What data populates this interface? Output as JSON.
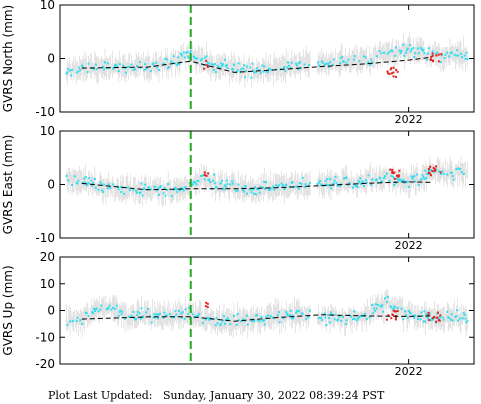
{
  "colors": {
    "errorbar": "#d4d4d4",
    "point": "#33ddf0",
    "point_recent": "#e0201c",
    "trend": "#000000",
    "marker": "#22aa22"
  },
  "chart_data": [
    {
      "type": "scatter",
      "title": "",
      "xlabel": "",
      "ylabel": "GVRS North (mm)",
      "ylim": [
        -10,
        10
      ],
      "yticks": [
        -10,
        0,
        10
      ],
      "xtick_labels": [
        "2022"
      ],
      "grid": false,
      "series": [
        {
          "x": [
            2020.5,
            2020.6,
            2020.7,
            2020.8,
            2020.9,
            2021.0,
            2021.05,
            2021.1,
            2021.2,
            2021.3,
            2021.4,
            2021.5,
            2021.6,
            2021.7,
            2021.8,
            2021.9,
            2022.0,
            2022.1
          ],
          "y": [
            -1.8,
            -1.6,
            -1.9,
            -1.4,
            -1.0,
            0.8,
            -0.6,
            -1.2,
            -2.0,
            -2.4,
            -1.6,
            -1.3,
            -0.9,
            -0.5,
            -0.4,
            1.0,
            1.8,
            0.6
          ]
        },
        {
          "x": [
            2021.07,
            2021.93,
            2022.12
          ],
          "y": [
            -1.3,
            -2.6,
            0.3
          ]
        }
      ],
      "trend": {
        "x": [
          2020.5,
          2020.8,
          2021.0,
          2021.2,
          2021.4,
          2021.6,
          2021.8,
          2022.0,
          2022.1
        ],
        "y": [
          -1.8,
          -1.6,
          -0.5,
          -2.6,
          -2.1,
          -1.5,
          -1.0,
          -0.3,
          0.2
        ]
      },
      "offset_marker_x": 2021.0
    },
    {
      "type": "scatter",
      "title": "",
      "xlabel": "",
      "ylabel": "GVRS East (mm)",
      "ylim": [
        -10,
        10
      ],
      "yticks": [
        -10,
        0,
        10
      ],
      "xtick_labels": [
        "2022"
      ],
      "grid": false,
      "series": [
        {
          "x": [
            2020.5,
            2020.6,
            2020.7,
            2020.8,
            2020.9,
            2021.0,
            2021.05,
            2021.1,
            2021.2,
            2021.3,
            2021.4,
            2021.5,
            2021.6,
            2021.7,
            2021.8,
            2021.9,
            2022.0,
            2022.1
          ],
          "y": [
            0.8,
            -0.4,
            -1.2,
            -1.0,
            -1.1,
            -0.6,
            1.4,
            0.6,
            -0.6,
            -0.9,
            -0.3,
            -0.2,
            0.2,
            0.5,
            0.4,
            1.3,
            0.2,
            2.2
          ]
        },
        {
          "x": [
            2021.07,
            2021.93,
            2022.12
          ],
          "y": [
            1.5,
            1.9,
            2.6
          ]
        }
      ],
      "trend": {
        "x": [
          2020.5,
          2020.8,
          2021.0,
          2021.2,
          2021.4,
          2021.6,
          2021.8,
          2022.0,
          2022.1
        ],
        "y": [
          0.2,
          -1.0,
          -0.8,
          -0.8,
          -0.6,
          -0.2,
          0.2,
          0.5,
          0.4
        ]
      },
      "offset_marker_x": 2021.0
    },
    {
      "type": "scatter",
      "title": "",
      "xlabel": "",
      "ylabel": "GVRS Up (mm)",
      "ylim": [
        -20,
        20
      ],
      "yticks": [
        -20,
        -10,
        0,
        10,
        20
      ],
      "xtick_labels": [
        "2022"
      ],
      "grid": false,
      "series": [
        {
          "x": [
            2020.5,
            2020.6,
            2020.7,
            2020.8,
            2020.9,
            2021.0,
            2021.05,
            2021.1,
            2021.2,
            2021.3,
            2021.4,
            2021.5,
            2021.6,
            2021.7,
            2021.8,
            2021.9,
            2022.0,
            2022.1
          ],
          "y": [
            -3.5,
            1.2,
            -2.0,
            -1.5,
            -2.8,
            -1.5,
            -2.4,
            -4.0,
            -4.2,
            -3.0,
            -2.0,
            -1.5,
            -2.2,
            -3.2,
            -2.1,
            3.0,
            -1.6,
            -2.6
          ]
        },
        {
          "x": [
            2021.07,
            2021.93,
            2022.12
          ],
          "y": [
            1.3,
            -1.8,
            -2.4
          ]
        }
      ],
      "trend": {
        "x": [
          2020.5,
          2020.8,
          2021.0,
          2021.2,
          2021.4,
          2021.6,
          2021.8,
          2022.0,
          2022.1
        ],
        "y": [
          -3.2,
          -2.4,
          -2.3,
          -4.0,
          -2.6,
          -1.6,
          -2.0,
          -2.2,
          -2.0
        ]
      },
      "offset_marker_x": 2021.0
    }
  ],
  "footer": {
    "label": "Plot Last Updated:",
    "timestamp": "Sunday, January 30, 2022 08:39:24 PST"
  }
}
